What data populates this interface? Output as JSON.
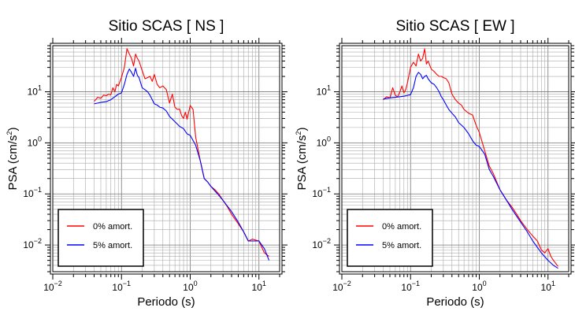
{
  "chart_data": [
    {
      "type": "line",
      "title": "Sitio SCAS [ NS ]",
      "xlabel": "Periodo (s)",
      "ylabel": "PSA (cm/s²)",
      "xscale": "log",
      "yscale": "log",
      "xlim": [
        0.01,
        20
      ],
      "ylim": [
        0.003,
        80
      ],
      "grid": true,
      "legend_position": "bottom-left",
      "xticks": [
        {
          "base": "10",
          "exp": "−2"
        },
        {
          "base": "10",
          "exp": "−1"
        },
        {
          "base": "10",
          "exp": "0"
        },
        {
          "base": "10",
          "exp": "1"
        }
      ],
      "yticks": [
        {
          "base": "10",
          "exp": "−2"
        },
        {
          "base": "10",
          "exp": "−1"
        },
        {
          "base": "10",
          "exp": "0"
        },
        {
          "base": "10",
          "exp": "1"
        }
      ],
      "series": [
        {
          "name": "0% amort.",
          "color": "#ff0000",
          "x": [
            0.04,
            0.045,
            0.05,
            0.055,
            0.06,
            0.065,
            0.07,
            0.075,
            0.08,
            0.085,
            0.09,
            0.095,
            0.1,
            0.11,
            0.12,
            0.13,
            0.14,
            0.15,
            0.16,
            0.17,
            0.18,
            0.2,
            0.22,
            0.24,
            0.26,
            0.28,
            0.3,
            0.33,
            0.36,
            0.4,
            0.45,
            0.5,
            0.55,
            0.6,
            0.65,
            0.7,
            0.75,
            0.8,
            0.85,
            0.9,
            1.0,
            1.1,
            1.2,
            1.4,
            1.6,
            1.8,
            2.0,
            2.3,
            2.6,
            3.0,
            3.5,
            4.0,
            5.0,
            6.0,
            7.0,
            8.0,
            10,
            12,
            14
          ],
          "values": [
            6.5,
            7.8,
            7.5,
            8.6,
            8.4,
            9.0,
            8.7,
            12,
            10,
            14,
            13,
            16,
            19,
            30,
            70,
            55,
            45,
            32,
            55,
            45,
            40,
            26,
            18,
            19,
            20,
            16,
            22,
            14,
            12,
            13,
            11,
            6,
            9,
            5,
            4.5,
            4.6,
            3.4,
            3,
            4,
            2.9,
            5.4,
            4.5,
            1.3,
            0.45,
            0.2,
            0.17,
            0.14,
            0.12,
            0.1,
            0.075,
            0.055,
            0.04,
            0.026,
            0.018,
            0.012,
            0.013,
            0.012,
            0.007,
            0.006
          ]
        },
        {
          "name": "5% amort.",
          "color": "#0000ff",
          "x": [
            0.04,
            0.05,
            0.06,
            0.07,
            0.08,
            0.09,
            0.1,
            0.11,
            0.12,
            0.13,
            0.14,
            0.15,
            0.16,
            0.17,
            0.18,
            0.2,
            0.22,
            0.24,
            0.26,
            0.28,
            0.3,
            0.33,
            0.36,
            0.4,
            0.45,
            0.5,
            0.6,
            0.7,
            0.8,
            0.9,
            1.0,
            1.2,
            1.4,
            1.6,
            1.8,
            2.0,
            2.5,
            3.0,
            4.0,
            5.0,
            6.0,
            7.0,
            8.0,
            10,
            12,
            14
          ],
          "values": [
            5.8,
            6.2,
            6.4,
            7.0,
            8.0,
            9.0,
            9.5,
            14,
            22,
            28,
            24,
            20,
            29,
            21,
            19,
            12,
            11,
            10,
            8.5,
            7,
            5.8,
            5.5,
            5,
            4.8,
            4.2,
            3.3,
            2.6,
            2.1,
            1.9,
            1.5,
            1.4,
            0.9,
            0.45,
            0.2,
            0.17,
            0.14,
            0.1,
            0.075,
            0.045,
            0.028,
            0.018,
            0.012,
            0.012,
            0.012,
            0.0085,
            0.005
          ]
        }
      ]
    },
    {
      "type": "line",
      "title": "Sitio SCAS [ EW ]",
      "xlabel": "Periodo (s)",
      "ylabel": "PSA (cm/s²)",
      "xscale": "log",
      "yscale": "log",
      "xlim": [
        0.01,
        20
      ],
      "ylim": [
        0.003,
        80
      ],
      "grid": true,
      "legend_position": "bottom-left",
      "xticks": [
        {
          "base": "10",
          "exp": "−2"
        },
        {
          "base": "10",
          "exp": "−1"
        },
        {
          "base": "10",
          "exp": "0"
        },
        {
          "base": "10",
          "exp": "1"
        }
      ],
      "yticks": [
        {
          "base": "10",
          "exp": "−2"
        },
        {
          "base": "10",
          "exp": "−1"
        },
        {
          "base": "10",
          "exp": "0"
        },
        {
          "base": "10",
          "exp": "1"
        }
      ],
      "series": [
        {
          "name": "0% amort.",
          "color": "#ff0000",
          "x": [
            0.04,
            0.045,
            0.05,
            0.055,
            0.06,
            0.065,
            0.07,
            0.075,
            0.08,
            0.085,
            0.09,
            0.1,
            0.11,
            0.12,
            0.13,
            0.14,
            0.15,
            0.16,
            0.17,
            0.18,
            0.2,
            0.22,
            0.24,
            0.26,
            0.28,
            0.3,
            0.33,
            0.36,
            0.4,
            0.45,
            0.5,
            0.55,
            0.6,
            0.7,
            0.8,
            0.9,
            1.0,
            1.2,
            1.4,
            1.6,
            2.0,
            2.5,
            3.0,
            3.5,
            4.0,
            5.0,
            6.0,
            7.0,
            8.0,
            9.0,
            10,
            11,
            12,
            14
          ],
          "values": [
            7,
            8,
            7.5,
            12,
            8.5,
            8,
            10,
            13,
            9.5,
            11,
            15,
            30,
            38,
            32,
            55,
            40,
            45,
            70,
            35,
            40,
            28,
            25,
            22,
            20,
            20,
            19,
            18,
            15,
            9,
            7,
            6,
            5.5,
            4.5,
            3.8,
            3.5,
            2.2,
            1.6,
            0.7,
            0.35,
            0.25,
            0.12,
            0.075,
            0.055,
            0.04,
            0.03,
            0.02,
            0.015,
            0.012,
            0.008,
            0.007,
            0.0085,
            0.006,
            0.005,
            0.0038
          ]
        },
        {
          "name": "5% amort.",
          "color": "#0000ff",
          "x": [
            0.04,
            0.05,
            0.06,
            0.07,
            0.08,
            0.09,
            0.1,
            0.11,
            0.12,
            0.13,
            0.14,
            0.15,
            0.16,
            0.17,
            0.18,
            0.2,
            0.22,
            0.24,
            0.26,
            0.28,
            0.3,
            0.33,
            0.36,
            0.4,
            0.45,
            0.5,
            0.6,
            0.7,
            0.8,
            0.9,
            1.0,
            1.2,
            1.4,
            1.6,
            2.0,
            2.5,
            3.0,
            4.0,
            5.0,
            6.0,
            7.0,
            8.0,
            10,
            12,
            14
          ],
          "values": [
            7.2,
            7.6,
            7.8,
            8.0,
            8.2,
            8.5,
            8.8,
            12,
            20,
            24,
            22,
            18,
            20,
            21,
            18,
            15,
            14,
            12,
            10,
            8,
            7,
            5.5,
            4.5,
            3.8,
            3.2,
            2.5,
            2.0,
            1.5,
            1.1,
            0.9,
            0.85,
            0.6,
            0.3,
            0.22,
            0.12,
            0.075,
            0.05,
            0.028,
            0.018,
            0.012,
            0.009,
            0.007,
            0.005,
            0.004,
            0.0035
          ]
        }
      ]
    }
  ]
}
